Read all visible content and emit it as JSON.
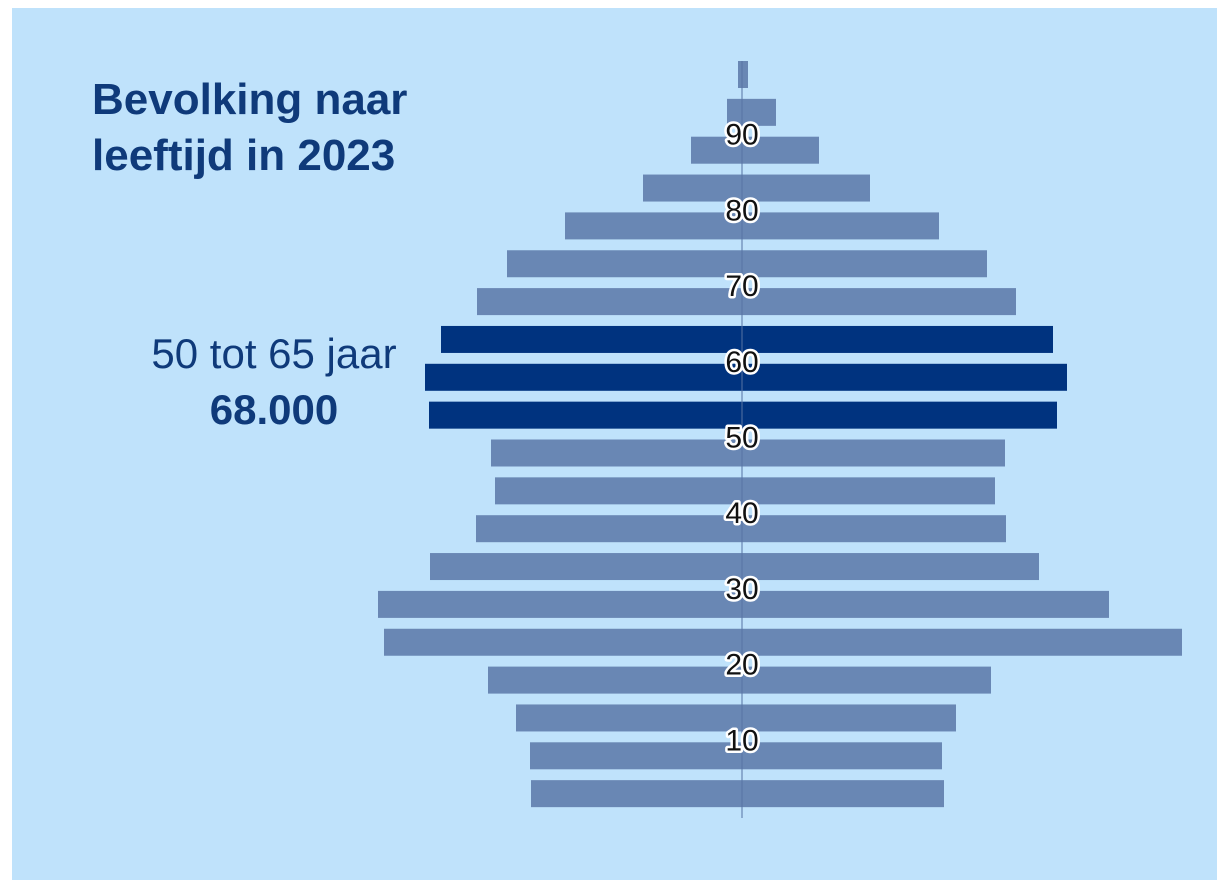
{
  "colors": {
    "background": "#bfe2fb",
    "bar": "#6987b4",
    "bar_highlight": "#00337f",
    "text": "#0f3a7a",
    "tick_text": "#111111",
    "tick_halo": "#ffffff"
  },
  "title_lines": [
    "Bevolking naar",
    "leeftijd in 2023"
  ],
  "annotation": {
    "label": "50 tot 65 jaar",
    "value": "68.000"
  },
  "chart_data": {
    "type": "bar",
    "orientation": "horizontal-population-pyramid",
    "title": "Bevolking naar leeftijd in 2023",
    "xlabel": "",
    "ylabel": "",
    "unit": "relative population size (no numeric axis shown)",
    "legend": "none",
    "grid": false,
    "age_ticks": [
      "10",
      "20",
      "30",
      "40",
      "50",
      "60",
      "70",
      "80",
      "90"
    ],
    "highlighted_range": "50 tot 65 jaar",
    "highlighted_total": "68.000",
    "categories": [
      "0-4",
      "5-9",
      "10-14",
      "15-19",
      "20-24",
      "25-29",
      "30-34",
      "35-39",
      "40-44",
      "45-49",
      "50-54",
      "55-59",
      "60-64",
      "65-69",
      "70-74",
      "75-79",
      "80-84",
      "85-89",
      "90-94",
      "95+"
    ],
    "series": [
      {
        "side": "left",
        "values": [
          211,
          212,
          226,
          254,
          358,
          364,
          312,
          266,
          247,
          251,
          313,
          317,
          301,
          265,
          235,
          177,
          99,
          51,
          15,
          4
        ]
      },
      {
        "side": "right",
        "values": [
          202,
          200,
          214,
          249,
          440,
          367,
          297,
          264,
          253,
          263,
          315,
          325,
          311,
          274,
          245,
          197,
          128,
          77,
          34,
          6
        ]
      }
    ],
    "highlighted_categories": [
      "50-54",
      "55-59",
      "60-64"
    ]
  }
}
